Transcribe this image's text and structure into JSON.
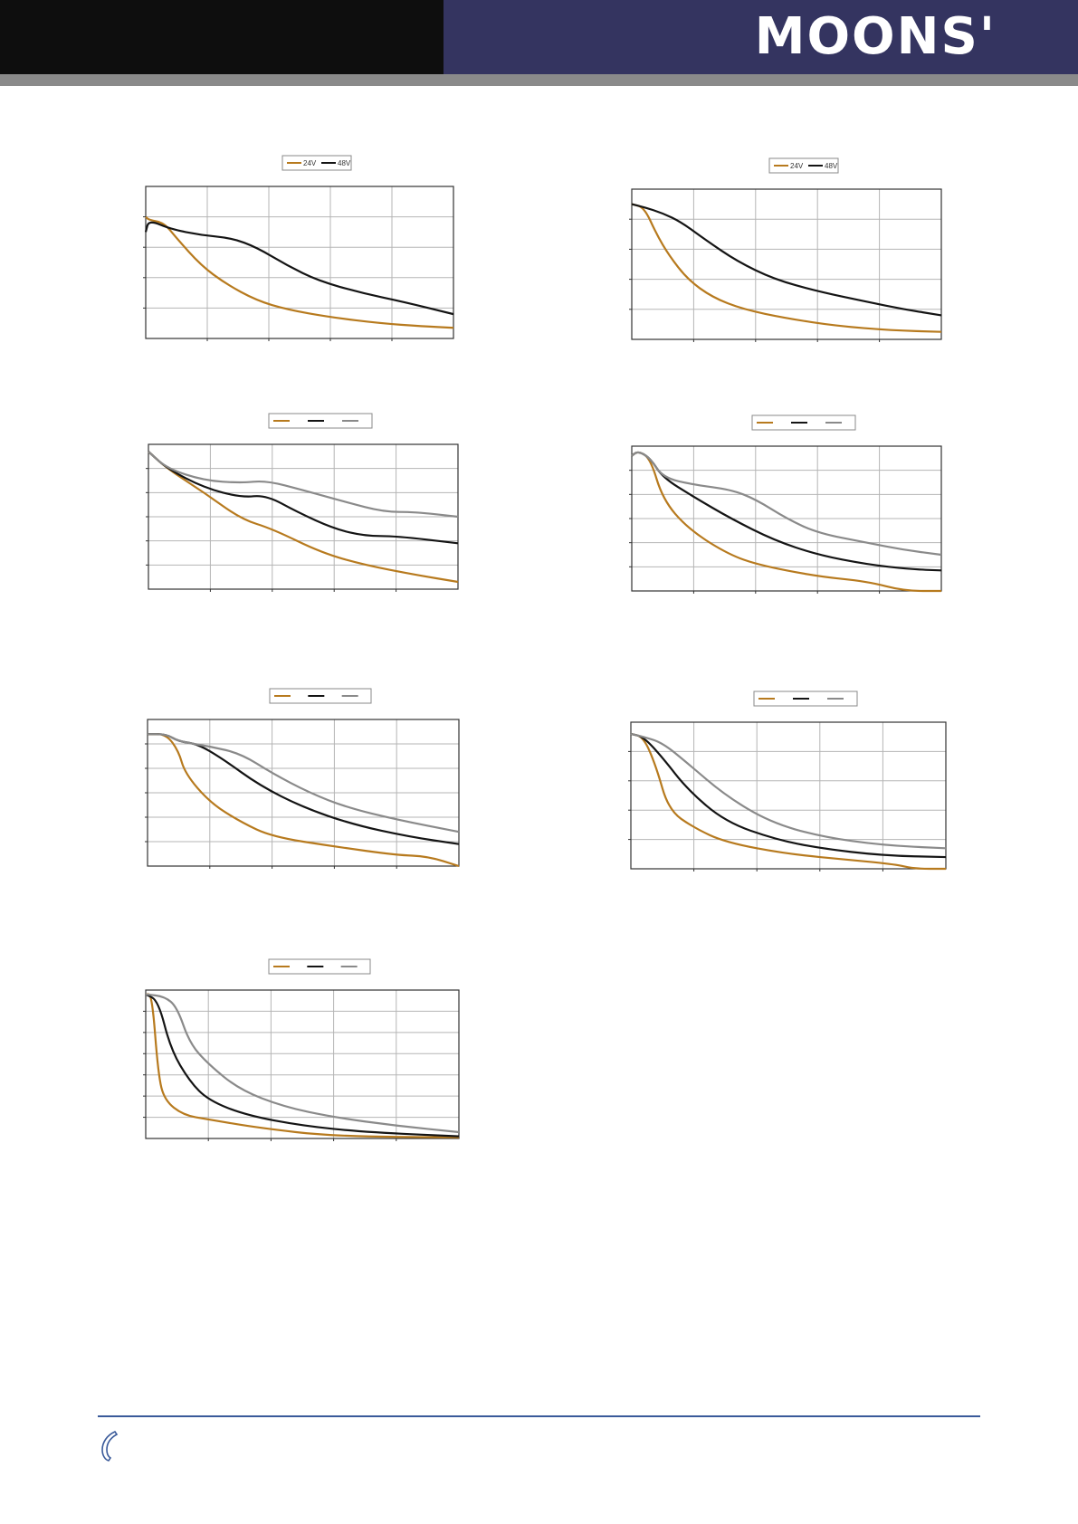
{
  "header": {
    "brand": "MOONS'",
    "colors": {
      "left": "#0e0e0e",
      "right": "#343460",
      "bar": "#8a8a8a"
    }
  },
  "footer": {
    "icon": "phone-icon",
    "rule_color": "#3a5a9a"
  },
  "series_colors": {
    "24V": "#b77a1e",
    "48V": "#141414",
    "third": "#8a8a8a"
  },
  "chart_data": [
    {
      "type": "line",
      "grid": true,
      "legend_position": "top-center",
      "xlim": [
        0,
        5
      ],
      "ylim": [
        0,
        5
      ],
      "series": [
        {
          "name": "24V",
          "color": "#b77a1e",
          "points": [
            [
              0,
              4
            ],
            [
              0.05,
              3.9
            ],
            [
              0.3,
              3.8
            ],
            [
              0.5,
              3.3
            ],
            [
              0.9,
              2.4
            ],
            [
              1.3,
              1.8
            ],
            [
              1.8,
              1.25
            ],
            [
              2.3,
              0.95
            ],
            [
              3,
              0.7
            ],
            [
              3.8,
              0.5
            ],
            [
              4.5,
              0.4
            ],
            [
              5,
              0.35
            ]
          ]
        },
        {
          "name": "48V",
          "color": "#141414",
          "points": [
            [
              0,
              3.5
            ],
            [
              0.05,
              3.9
            ],
            [
              0.4,
              3.6
            ],
            [
              0.9,
              3.4
            ],
            [
              1.4,
              3.3
            ],
            [
              1.8,
              3
            ],
            [
              2.3,
              2.4
            ],
            [
              2.8,
              1.9
            ],
            [
              3.5,
              1.5
            ],
            [
              4.2,
              1.2
            ],
            [
              5,
              0.8
            ]
          ]
        }
      ]
    },
    {
      "type": "line",
      "grid": true,
      "legend_position": "top-center",
      "xlim": [
        0,
        5
      ],
      "ylim": [
        0,
        5
      ],
      "series": [
        {
          "name": "24V",
          "color": "#b77a1e",
          "points": [
            [
              0,
              4.5
            ],
            [
              0.2,
              4.4
            ],
            [
              0.4,
              3.5
            ],
            [
              0.6,
              2.8
            ],
            [
              0.9,
              2
            ],
            [
              1.3,
              1.4
            ],
            [
              1.8,
              1
            ],
            [
              2.5,
              0.7
            ],
            [
              3.3,
              0.45
            ],
            [
              4.2,
              0.3
            ],
            [
              5,
              0.25
            ]
          ]
        },
        {
          "name": "48V",
          "color": "#141414",
          "points": [
            [
              0,
              4.5
            ],
            [
              0.2,
              4.4
            ],
            [
              0.5,
              4.2
            ],
            [
              0.8,
              3.9
            ],
            [
              1.2,
              3.3
            ],
            [
              1.7,
              2.6
            ],
            [
              2.3,
              2
            ],
            [
              3,
              1.6
            ],
            [
              3.8,
              1.25
            ],
            [
              4.4,
              1
            ],
            [
              5,
              0.8
            ]
          ]
        }
      ]
    },
    {
      "type": "line",
      "grid": true,
      "legend_position": "top-center",
      "xlim": [
        0,
        5
      ],
      "ylim": [
        0,
        6
      ],
      "series": [
        {
          "color": "#b77a1e",
          "points": [
            [
              0,
              5.7
            ],
            [
              0.3,
              5
            ],
            [
              0.9,
              4
            ],
            [
              1.5,
              2.9
            ],
            [
              2,
              2.5
            ],
            [
              2.8,
              1.5
            ],
            [
              3.5,
              1
            ],
            [
              4.3,
              0.6
            ],
            [
              5,
              0.3
            ]
          ]
        },
        {
          "color": "#141414",
          "points": [
            [
              0,
              5.7
            ],
            [
              0.3,
              5
            ],
            [
              0.9,
              4.2
            ],
            [
              1.5,
              3.8
            ],
            [
              1.9,
              3.9
            ],
            [
              2.4,
              3.2
            ],
            [
              3,
              2.5
            ],
            [
              3.5,
              2.2
            ],
            [
              4,
              2.2
            ],
            [
              5,
              1.9
            ]
          ]
        },
        {
          "color": "#8a8a8a",
          "points": [
            [
              0,
              5.7
            ],
            [
              0.3,
              5
            ],
            [
              0.9,
              4.5
            ],
            [
              1.5,
              4.4
            ],
            [
              1.9,
              4.5
            ],
            [
              2.5,
              4.1
            ],
            [
              3.2,
              3.6
            ],
            [
              3.8,
              3.2
            ],
            [
              4.3,
              3.2
            ],
            [
              5,
              3
            ]
          ]
        }
      ]
    },
    {
      "type": "line",
      "grid": true,
      "legend_position": "top-center",
      "xlim": [
        0,
        5
      ],
      "ylim": [
        0,
        6
      ],
      "series": [
        {
          "color": "#b77a1e",
          "points": [
            [
              0,
              5.6
            ],
            [
              0.1,
              5.8
            ],
            [
              0.3,
              5.5
            ],
            [
              0.5,
              3.8
            ],
            [
              0.9,
              2.6
            ],
            [
              1.5,
              1.6
            ],
            [
              2,
              1.1
            ],
            [
              3,
              0.6
            ],
            [
              3.8,
              0.4
            ],
            [
              4.4,
              0
            ],
            [
              5,
              0
            ]
          ]
        },
        {
          "color": "#141414",
          "points": [
            [
              0,
              5.6
            ],
            [
              0.1,
              5.8
            ],
            [
              0.3,
              5.5
            ],
            [
              0.5,
              4.7
            ],
            [
              1,
              3.9
            ],
            [
              1.6,
              3
            ],
            [
              2.3,
              2.1
            ],
            [
              3,
              1.5
            ],
            [
              3.8,
              1.1
            ],
            [
              4.5,
              0.9
            ],
            [
              5,
              0.85
            ]
          ]
        },
        {
          "color": "#8a8a8a",
          "points": [
            [
              0,
              5.6
            ],
            [
              0.1,
              5.8
            ],
            [
              0.3,
              5.5
            ],
            [
              0.5,
              4.7
            ],
            [
              1,
              4.4
            ],
            [
              1.6,
              4.2
            ],
            [
              2,
              3.8
            ],
            [
              2.5,
              3.0
            ],
            [
              3,
              2.4
            ],
            [
              3.8,
              2.0
            ],
            [
              4.4,
              1.7
            ],
            [
              5,
              1.5
            ]
          ]
        }
      ]
    },
    {
      "type": "line",
      "grid": true,
      "legend_position": "top-center",
      "xlim": [
        0,
        5
      ],
      "ylim": [
        0,
        6
      ],
      "series": [
        {
          "color": "#b77a1e",
          "points": [
            [
              0,
              5.4
            ],
            [
              0.3,
              5.4
            ],
            [
              0.5,
              4.7
            ],
            [
              0.6,
              3.8
            ],
            [
              1,
              2.6
            ],
            [
              1.5,
              1.8
            ],
            [
              2,
              1.2
            ],
            [
              3,
              0.8
            ],
            [
              4,
              0.45
            ],
            [
              4.5,
              0.4
            ],
            [
              5,
              0
            ]
          ]
        },
        {
          "color": "#141414",
          "points": [
            [
              0,
              5.4
            ],
            [
              0.3,
              5.4
            ],
            [
              0.5,
              5.1
            ],
            [
              0.8,
              5.0
            ],
            [
              1.2,
              4.4
            ],
            [
              1.8,
              3.3
            ],
            [
              2.5,
              2.4
            ],
            [
              3.3,
              1.7
            ],
            [
              4.2,
              1.2
            ],
            [
              5,
              0.9
            ]
          ]
        },
        {
          "color": "#8a8a8a",
          "points": [
            [
              0,
              5.4
            ],
            [
              0.3,
              5.4
            ],
            [
              0.5,
              5.1
            ],
            [
              1,
              4.9
            ],
            [
              1.5,
              4.6
            ],
            [
              2,
              3.8
            ],
            [
              2.6,
              3.0
            ],
            [
              3.2,
              2.4
            ],
            [
              4,
              1.9
            ],
            [
              5,
              1.4
            ]
          ]
        }
      ]
    },
    {
      "type": "line",
      "grid": true,
      "legend_position": "top-center",
      "xlim": [
        0,
        5
      ],
      "ylim": [
        0,
        5
      ],
      "series": [
        {
          "color": "#b77a1e",
          "points": [
            [
              0,
              4.6
            ],
            [
              0.2,
              4.5
            ],
            [
              0.4,
              3.5
            ],
            [
              0.6,
              2.0
            ],
            [
              1,
              1.4
            ],
            [
              1.5,
              0.9
            ],
            [
              2.5,
              0.5
            ],
            [
              3.5,
              0.3
            ],
            [
              4.2,
              0.15
            ],
            [
              4.5,
              0
            ],
            [
              5,
              0
            ]
          ]
        },
        {
          "color": "#141414",
          "points": [
            [
              0,
              4.6
            ],
            [
              0.2,
              4.5
            ],
            [
              0.5,
              3.8
            ],
            [
              0.9,
              2.7
            ],
            [
              1.5,
              1.6
            ],
            [
              2.3,
              1.0
            ],
            [
              3,
              0.7
            ],
            [
              4,
              0.45
            ],
            [
              5,
              0.4
            ]
          ]
        },
        {
          "color": "#8a8a8a",
          "points": [
            [
              0,
              4.6
            ],
            [
              0.2,
              4.5
            ],
            [
              0.5,
              4.3
            ],
            [
              0.9,
              3.6
            ],
            [
              1.5,
              2.5
            ],
            [
              2.2,
              1.6
            ],
            [
              3,
              1.1
            ],
            [
              4,
              0.8
            ],
            [
              5,
              0.7
            ]
          ]
        }
      ]
    },
    {
      "type": "line",
      "grid": true,
      "legend_position": "top-center",
      "xlim": [
        0,
        5
      ],
      "ylim": [
        0,
        7
      ],
      "series": [
        {
          "color": "#b77a1e",
          "points": [
            [
              0,
              6.8
            ],
            [
              0.1,
              6.8
            ],
            [
              0.2,
              3.0
            ],
            [
              0.3,
              1.8
            ],
            [
              0.6,
              1.1
            ],
            [
              1,
              0.9
            ],
            [
              1.8,
              0.5
            ],
            [
              3,
              0.1
            ],
            [
              5,
              0.05
            ]
          ]
        },
        {
          "color": "#141414",
          "points": [
            [
              0,
              6.8
            ],
            [
              0.2,
              6.5
            ],
            [
              0.4,
              4.2
            ],
            [
              0.7,
              2.7
            ],
            [
              1,
              1.8
            ],
            [
              1.6,
              1.1
            ],
            [
              2.5,
              0.6
            ],
            [
              3.5,
              0.3
            ],
            [
              5,
              0.1
            ]
          ]
        },
        {
          "color": "#8a8a8a",
          "points": [
            [
              0,
              6.8
            ],
            [
              0.3,
              6.7
            ],
            [
              0.5,
              6.2
            ],
            [
              0.7,
              4.5
            ],
            [
              1,
              3.5
            ],
            [
              1.5,
              2.3
            ],
            [
              2.2,
              1.5
            ],
            [
              3,
              1.0
            ],
            [
              4,
              0.6
            ],
            [
              5,
              0.3
            ]
          ]
        }
      ]
    }
  ]
}
